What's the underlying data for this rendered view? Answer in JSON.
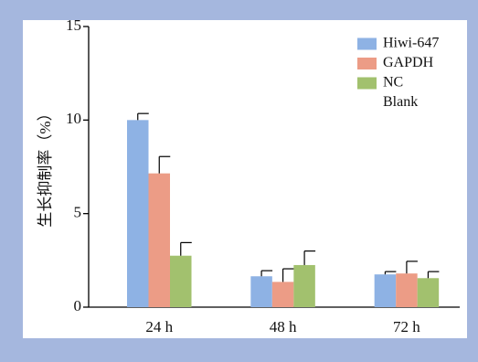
{
  "chart_data": {
    "type": "bar",
    "ylabel": "生长抑制率（%）",
    "categories": [
      "24 h",
      "48 h",
      "72 h"
    ],
    "ylim": [
      0,
      15
    ],
    "yticks": [
      0,
      5,
      10,
      15
    ],
    "legend_position": "top-right",
    "series": [
      {
        "name": "Hiwi-647",
        "color": "#8eb2e4",
        "values": [
          10.0,
          1.65,
          1.75
        ],
        "errors": [
          0.35,
          0.3,
          0.15
        ]
      },
      {
        "name": "GAPDH",
        "color": "#ec9c86",
        "values": [
          7.15,
          1.35,
          1.8
        ],
        "errors": [
          0.9,
          0.7,
          0.65
        ]
      },
      {
        "name": "NC",
        "color": "#a2c16e",
        "values": [
          2.75,
          2.25,
          1.55
        ],
        "errors": [
          0.7,
          0.75,
          0.35
        ]
      },
      {
        "name": "Blank",
        "color": null,
        "values": [
          0,
          0,
          0
        ],
        "errors": [
          0,
          0,
          0
        ]
      }
    ]
  }
}
